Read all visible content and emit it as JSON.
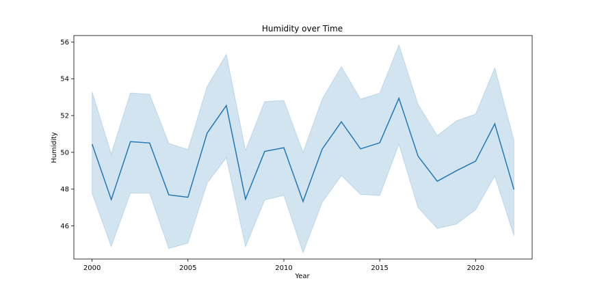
{
  "chart_data": {
    "type": "line",
    "title": "Humidity over Time",
    "xlabel": "Year",
    "ylabel": "Humidity",
    "xlim": [
      1999.05,
      2022.95
    ],
    "ylim": [
      44.2,
      56.35
    ],
    "xticks": [
      2000,
      2005,
      2010,
      2015,
      2020
    ],
    "yticks": [
      46,
      48,
      50,
      52,
      54,
      56
    ],
    "grid": false,
    "legend": "none",
    "colors": {
      "line": "#1f77b4",
      "band": "#1f77b4"
    },
    "series": [
      {
        "x": [
          2000,
          2001,
          2002,
          2003,
          2004,
          2005,
          2006,
          2007,
          2008,
          2009,
          2010,
          2011,
          2012,
          2013,
          2014,
          2015,
          2016,
          2017,
          2018,
          2019,
          2020,
          2021,
          2022
        ],
        "values": [
          50.45,
          47.43,
          50.58,
          50.51,
          47.69,
          47.56,
          51.05,
          52.54,
          47.46,
          50.05,
          50.25,
          47.33,
          50.18,
          51.66,
          50.19,
          50.52,
          52.94,
          49.79,
          48.43,
          49.0,
          49.52,
          51.55,
          47.98
        ],
        "lower": [
          47.77,
          44.88,
          47.79,
          47.78,
          44.77,
          45.07,
          48.33,
          49.7,
          44.87,
          47.41,
          47.66,
          44.55,
          47.28,
          48.74,
          47.71,
          47.65,
          50.44,
          46.99,
          45.86,
          46.1,
          46.88,
          48.71,
          45.47
        ],
        "upper": [
          53.29,
          49.92,
          53.23,
          53.16,
          50.49,
          50.15,
          53.58,
          55.33,
          50.11,
          52.76,
          52.82,
          50.0,
          52.9,
          54.66,
          52.89,
          53.22,
          55.84,
          52.61,
          50.91,
          51.71,
          52.08,
          54.59,
          50.66
        ]
      }
    ]
  }
}
